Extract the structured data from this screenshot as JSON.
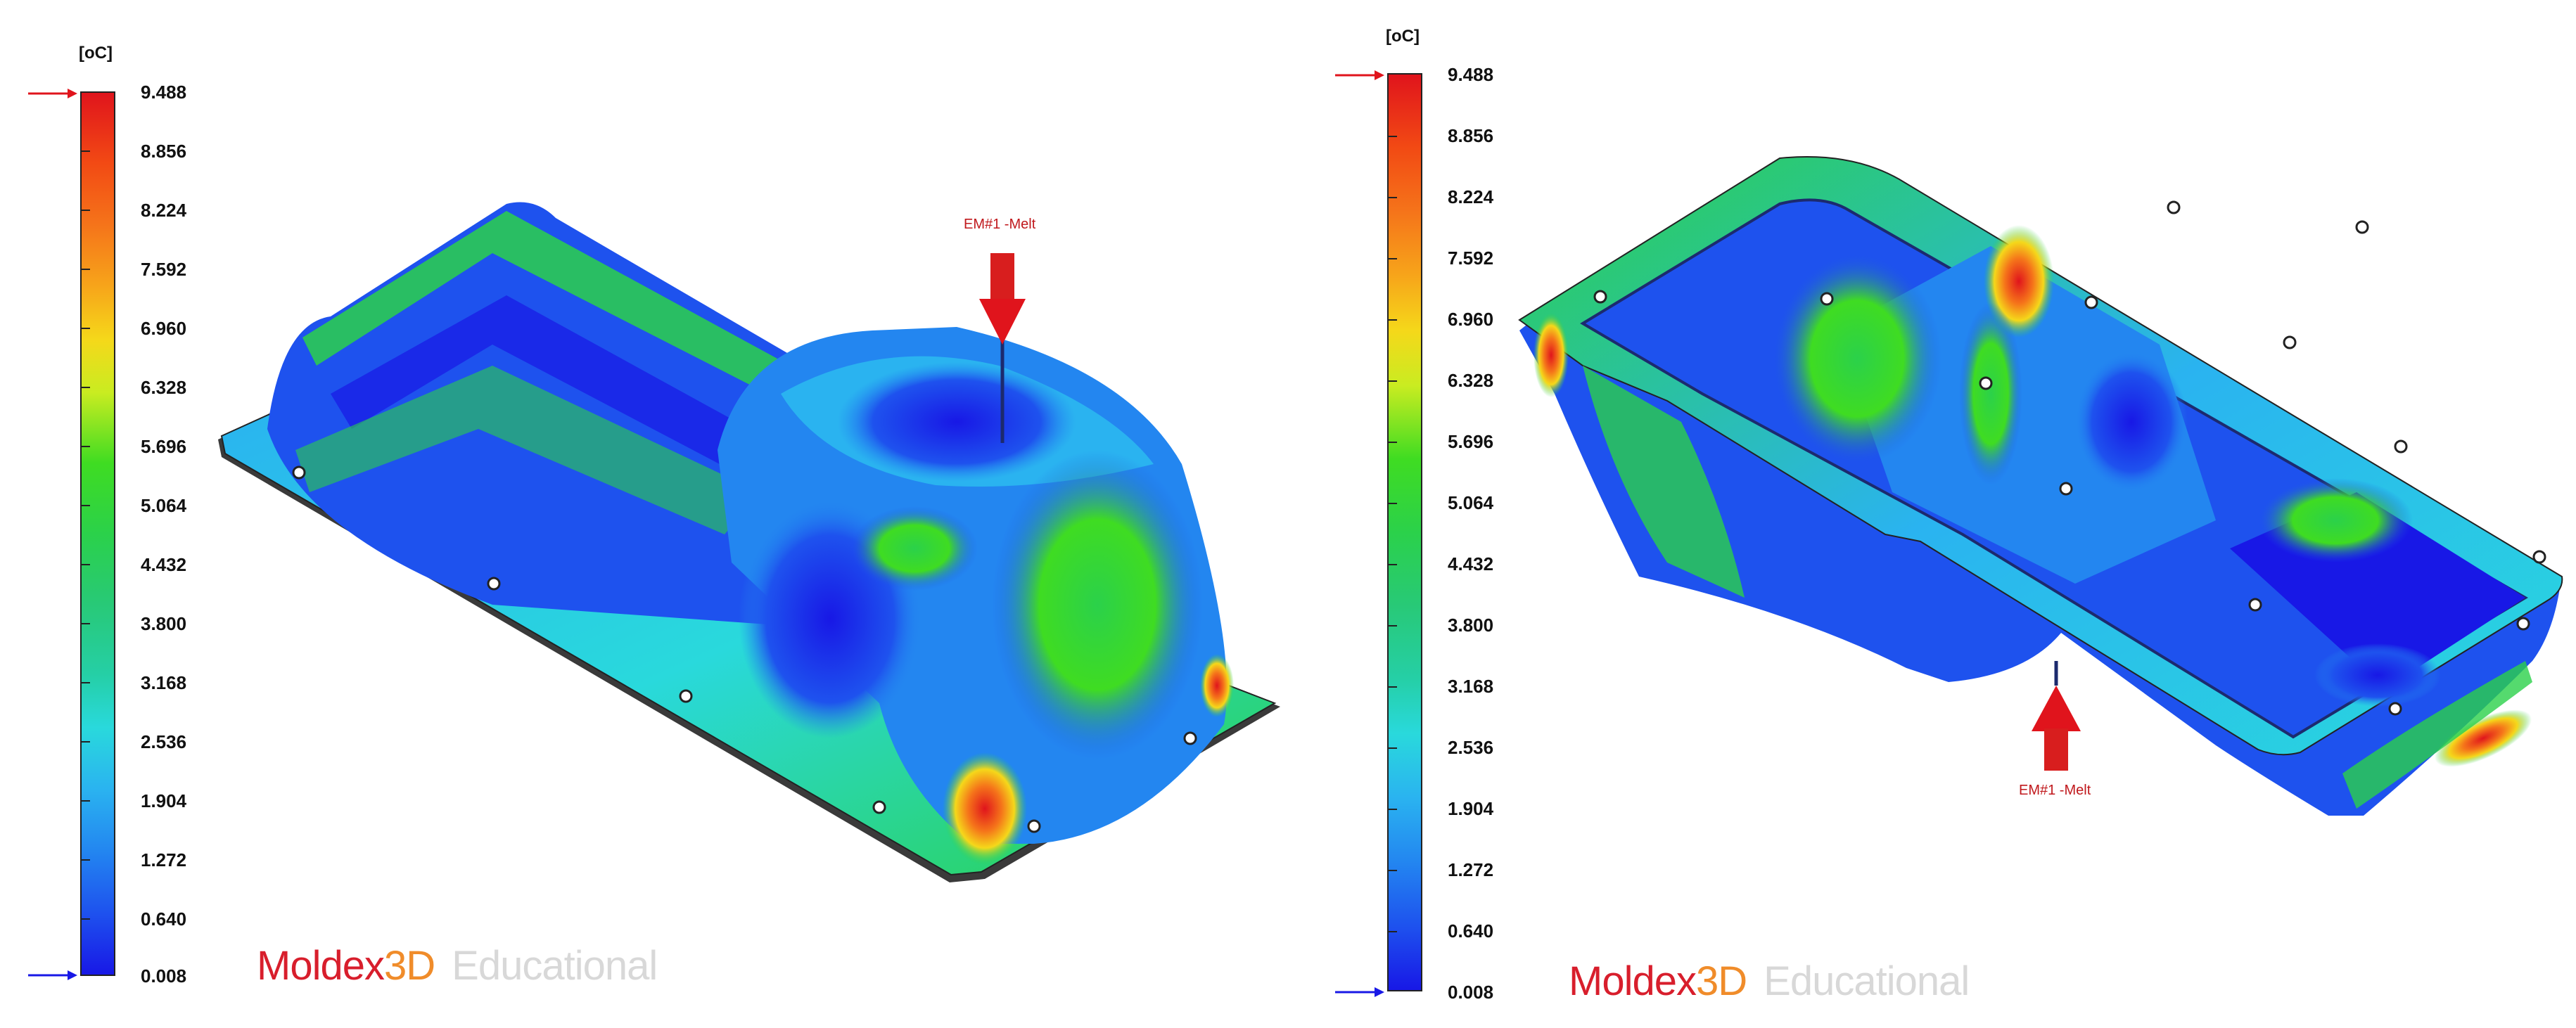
{
  "legend_left": {
    "unit": "[oC]",
    "ticks": [
      "9.488",
      "8.856",
      "8.224",
      "7.592",
      "6.960",
      "6.328",
      "5.696",
      "5.064",
      "4.432",
      "3.800",
      "3.168",
      "2.536",
      "1.904",
      "1.272",
      "0.640",
      "0.008"
    ],
    "max_marker_color": "#e0141c",
    "min_marker_color": "#1818e6"
  },
  "legend_right": {
    "unit": "[oC]",
    "ticks": [
      "9.488",
      "8.856",
      "8.224",
      "7.592",
      "6.960",
      "6.328",
      "5.696",
      "5.064",
      "4.432",
      "3.800",
      "3.168",
      "2.536",
      "1.904",
      "1.272",
      "0.640",
      "0.008"
    ],
    "max_marker_color": "#e0141c",
    "min_marker_color": "#1818e6"
  },
  "model_left": {
    "gate_label": "EM#1 -Melt"
  },
  "model_right": {
    "gate_label": "EM#1 -Melt"
  },
  "brand": {
    "name_part1": "Moldex",
    "name_part2": "3D",
    "edition": "Educational"
  },
  "colors": {
    "hot": "#e0141c",
    "warm": "#f5d81a",
    "mid": "#2bd14a",
    "cool": "#2ab3f0",
    "cold": "#1818e6"
  }
}
